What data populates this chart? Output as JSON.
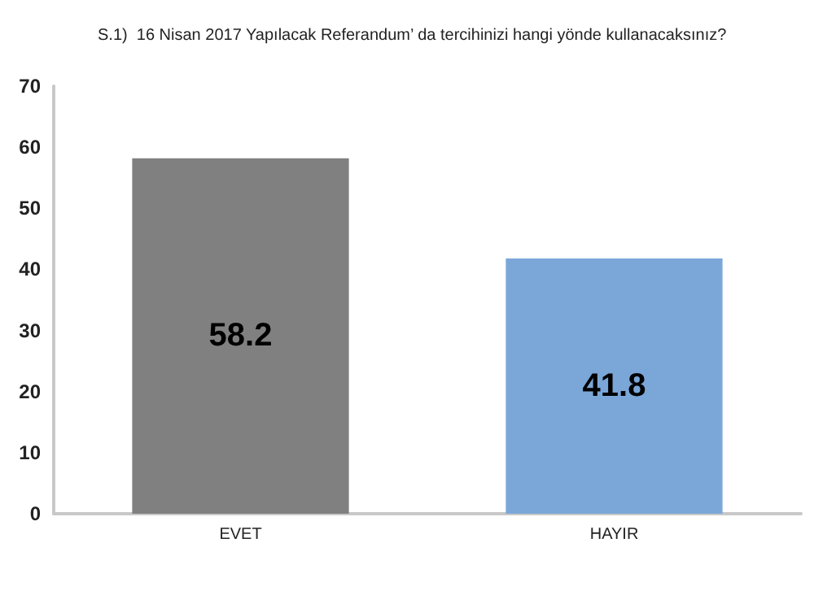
{
  "chart_data": {
    "type": "bar",
    "title": "S.1)  16 Nisan 2017 Yapılacak Referandum’ da tercihinizi hangi yönde kullanacaksınız?",
    "categories": [
      "EVET",
      "HAYIR"
    ],
    "values": [
      58.2,
      41.8
    ],
    "colors": [
      "#808080",
      "#7aa7d8"
    ],
    "ylim": [
      0,
      70
    ],
    "yticks": [
      0,
      10,
      20,
      30,
      40,
      50,
      60,
      70
    ],
    "grid": false,
    "data_labels": true
  }
}
